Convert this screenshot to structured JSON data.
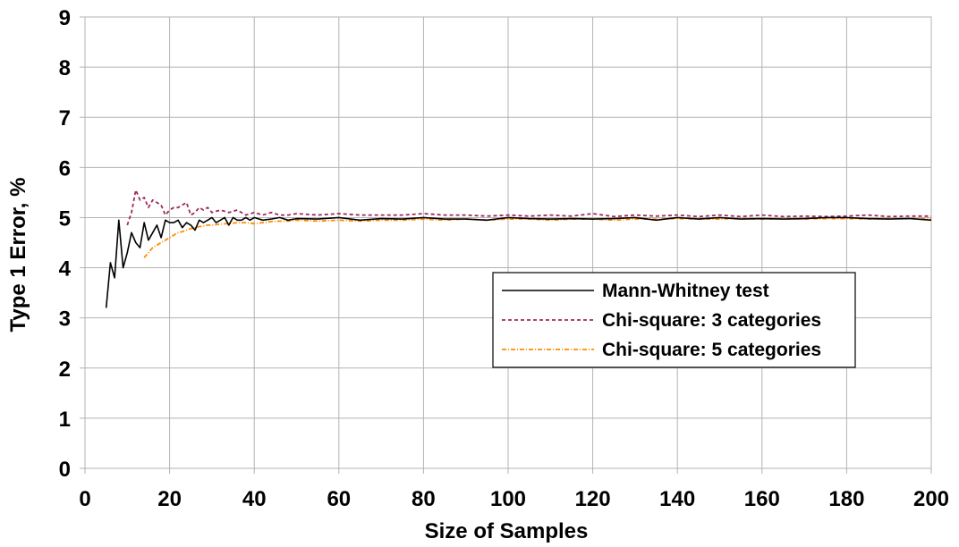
{
  "chart_data": {
    "type": "line",
    "xlabel": "Size of Samples",
    "ylabel": "Type 1 Error, %",
    "xlim": [
      0,
      200
    ],
    "ylim": [
      0,
      9
    ],
    "x_ticks": [
      0,
      20,
      40,
      60,
      80,
      100,
      120,
      140,
      160,
      180,
      200
    ],
    "y_ticks": [
      0,
      1,
      2,
      3,
      4,
      5,
      6,
      7,
      8,
      9
    ],
    "grid": true,
    "legend_position": "center-right",
    "series": [
      {
        "name": "Mann-Whitney test",
        "color": "#000000",
        "dash": "solid",
        "x": [
          5,
          6,
          7,
          8,
          9,
          10,
          11,
          12,
          13,
          14,
          15,
          16,
          17,
          18,
          19,
          20,
          21,
          22,
          23,
          24,
          25,
          26,
          27,
          28,
          29,
          30,
          31,
          32,
          33,
          34,
          35,
          36,
          37,
          38,
          39,
          40,
          42,
          44,
          46,
          48,
          50,
          55,
          60,
          65,
          70,
          75,
          80,
          85,
          90,
          95,
          100,
          105,
          110,
          115,
          120,
          125,
          130,
          135,
          140,
          145,
          150,
          155,
          160,
          165,
          170,
          175,
          180,
          185,
          190,
          195,
          200
        ],
        "y": [
          3.2,
          4.1,
          3.8,
          4.95,
          4.0,
          4.3,
          4.7,
          4.5,
          4.4,
          4.9,
          4.55,
          4.7,
          4.85,
          4.6,
          4.95,
          4.9,
          4.9,
          4.95,
          4.8,
          4.9,
          4.85,
          4.75,
          4.95,
          4.9,
          4.95,
          5.0,
          4.9,
          4.95,
          5.0,
          4.85,
          5.0,
          4.95,
          4.95,
          5.0,
          4.95,
          5.0,
          4.95,
          4.97,
          5.0,
          4.95,
          4.98,
          4.97,
          5.0,
          4.95,
          4.98,
          4.97,
          5.0,
          4.97,
          4.97,
          4.95,
          5.0,
          4.98,
          4.97,
          4.98,
          4.97,
          4.98,
          5.0,
          4.95,
          5.0,
          4.97,
          5.0,
          4.97,
          4.98,
          4.97,
          4.98,
          5.0,
          5.0,
          4.98,
          4.97,
          4.98,
          4.95
        ]
      },
      {
        "name": "Chi-square: 3 categories",
        "color": "#9e2a5e",
        "dash": "dashed",
        "x": [
          10,
          11,
          12,
          13,
          14,
          15,
          16,
          17,
          18,
          19,
          20,
          21,
          22,
          23,
          24,
          25,
          26,
          27,
          28,
          29,
          30,
          32,
          34,
          36,
          38,
          40,
          42,
          44,
          46,
          48,
          50,
          55,
          60,
          65,
          70,
          75,
          80,
          85,
          90,
          95,
          100,
          105,
          110,
          115,
          120,
          125,
          130,
          135,
          140,
          145,
          150,
          155,
          160,
          165,
          170,
          175,
          180,
          185,
          190,
          195,
          200
        ],
        "y": [
          4.85,
          5.1,
          5.55,
          5.35,
          5.4,
          5.2,
          5.35,
          5.3,
          5.25,
          5.05,
          5.15,
          5.2,
          5.2,
          5.25,
          5.3,
          5.05,
          5.1,
          5.2,
          5.15,
          5.2,
          5.1,
          5.15,
          5.1,
          5.15,
          5.05,
          5.1,
          5.05,
          5.1,
          5.05,
          5.05,
          5.08,
          5.05,
          5.08,
          5.05,
          5.05,
          5.05,
          5.08,
          5.05,
          5.05,
          5.03,
          5.05,
          5.03,
          5.05,
          5.03,
          5.08,
          5.02,
          5.05,
          5.03,
          5.05,
          5.02,
          5.05,
          5.02,
          5.05,
          5.02,
          5.03,
          5.02,
          5.03,
          5.05,
          5.02,
          5.03,
          5.03
        ]
      },
      {
        "name": "Chi-square: 5 categories",
        "color": "#ff8c00",
        "dash": "dash-dot",
        "x": [
          14,
          15,
          16,
          17,
          18,
          19,
          20,
          21,
          22,
          23,
          24,
          25,
          26,
          27,
          28,
          29,
          30,
          32,
          34,
          36,
          38,
          40,
          42,
          44,
          46,
          48,
          50,
          55,
          60,
          65,
          70,
          75,
          80,
          85,
          90,
          95,
          100,
          105,
          110,
          115,
          120,
          125,
          130,
          135,
          140,
          145,
          150,
          155,
          160,
          165,
          170,
          175,
          180,
          185,
          190,
          195,
          200
        ],
        "y": [
          4.2,
          4.3,
          4.4,
          4.45,
          4.5,
          4.55,
          4.6,
          4.65,
          4.7,
          4.72,
          4.75,
          4.78,
          4.8,
          4.82,
          4.83,
          4.85,
          4.85,
          4.87,
          4.88,
          4.9,
          4.9,
          4.88,
          4.9,
          4.92,
          4.93,
          4.93,
          4.95,
          4.93,
          4.95,
          4.93,
          4.95,
          4.95,
          4.97,
          4.95,
          4.97,
          4.95,
          4.97,
          4.97,
          4.95,
          4.97,
          4.97,
          4.95,
          4.97,
          4.97,
          4.98,
          4.97,
          4.97,
          4.98,
          4.97,
          4.98,
          4.97,
          4.98,
          4.98,
          4.97,
          4.98,
          4.98,
          4.98
        ]
      }
    ]
  }
}
